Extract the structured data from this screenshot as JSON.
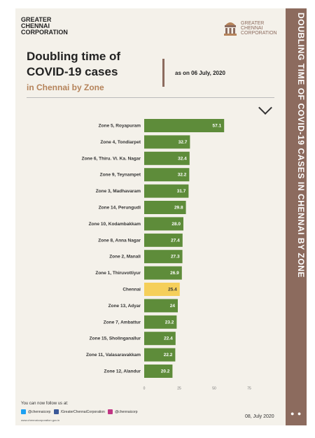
{
  "brand": {
    "line1": "GREATER",
    "line2": "CHENNAI",
    "line3": "CORPORATION"
  },
  "logo": {
    "icon": "gcc-emblem-icon",
    "line1": "GREATER",
    "line2": "CHENNAI",
    "line3": "CORPORATION"
  },
  "headline": {
    "line1": "Doubling time of",
    "line2": "COVID-19 cases",
    "subtitle": "in Chennai by Zone"
  },
  "as_on": "as on 06 July, 2020",
  "side_banner": "DOUBLING TIME OF COVID-19 CASES IN CHENNAI BY ZONE",
  "side_dots": "● ●",
  "footer": {
    "follow": "You can now follow us at:",
    "twitter": "@chennaicorp",
    "facebook": "/GreaterChennaiCorporation",
    "instagram": "@chennaicorp",
    "website": "www.chennaicorporation.gov.in",
    "date": "08, July 2020"
  },
  "colors": {
    "zone_bar": "#5e8c3a",
    "city_bar": "#f5cf5a",
    "accent": "#8c6b5e",
    "subtitle": "#b5835a"
  },
  "chart_data": {
    "type": "bar",
    "orientation": "horizontal",
    "title": "Doubling time of COVID-19 cases in Chennai by Zone",
    "categories": [
      "Zone 5, Royapuram",
      "Zone 4, Tondiarpet",
      "Zone 6, Thiru. Vi. Ka. Nagar",
      "Zone 9, Teynampet",
      "Zone 3, Madhavaram",
      "Zone 14, Perungudi",
      "Zone 10, Kodambakkam",
      "Zone 8, Anna Nagar",
      "Zone 2, Manali",
      "Zone 1, Thiruvottiyur",
      "Chennai",
      "Zone 13, Adyar",
      "Zone 7, Ambattur",
      "Zone 15, Sholinganallur",
      "Zone 11, Valasaravakkam",
      "Zone 12, Alandur"
    ],
    "values": [
      57.1,
      32.7,
      32.4,
      32.2,
      31.7,
      29.8,
      28.0,
      27.4,
      27.3,
      26.9,
      25.4,
      24,
      23.2,
      22.4,
      22.2,
      20.2
    ],
    "value_labels": [
      "57.1",
      "32.7",
      "32.4",
      "32.2",
      "31.7",
      "29.8",
      "28.0",
      "27.4",
      "27.3",
      "26.9",
      "25.4",
      "24",
      "23.2",
      "22.4",
      "22.2",
      "20.2"
    ],
    "highlight": "Chennai",
    "xlim": [
      0,
      75
    ],
    "xticks": [
      "0",
      "25",
      "50",
      "75"
    ]
  }
}
